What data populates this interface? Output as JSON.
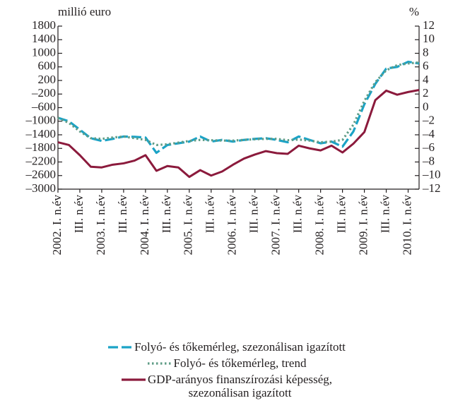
{
  "chart_data": {
    "type": "line",
    "ylabel": "millió euro",
    "y2label": "%",
    "categories": [
      "2002. I. n.év",
      null,
      "III. n.év",
      null,
      "2003. I. n.év",
      null,
      "III. n.év",
      null,
      "2004. I. n.év",
      null,
      "III. n.év",
      null,
      "2005. I. n.év",
      null,
      "III. n.év",
      null,
      "2006. I. n.év",
      null,
      "III. n.év",
      null,
      "2007. I. n.év",
      null,
      "III. n.év",
      null,
      "2008. I. n.év",
      null,
      "III. n.év",
      null,
      "2009. I. n.év",
      null,
      "III. n.év",
      null,
      "2010. I. n.év",
      null
    ],
    "ylim": [
      -3000,
      1800
    ],
    "yticks": [
      {
        "value": -3000,
        "label": "–3000"
      },
      {
        "value": -2600,
        "label": "–2600"
      },
      {
        "value": -2200,
        "label": "–2200"
      },
      {
        "value": -1800,
        "label": "–1800"
      },
      {
        "value": -1400,
        "label": "–1400"
      },
      {
        "value": -1000,
        "label": "–1000"
      },
      {
        "value": -600,
        "label": "–600"
      },
      {
        "value": -200,
        "label": "–200"
      },
      200,
      600,
      1000,
      1400,
      1800
    ],
    "y2lim": [
      -12,
      12
    ],
    "y2ticks": [
      {
        "value": -12,
        "label": "–12"
      },
      {
        "value": -10,
        "label": "–10"
      },
      {
        "value": -8,
        "label": "–8"
      },
      {
        "value": -6,
        "label": "–6"
      },
      {
        "value": -4,
        "label": "–4"
      },
      {
        "value": -2,
        "label": "–2"
      },
      0,
      2,
      4,
      6,
      8,
      10,
      12
    ],
    "series": [
      {
        "name": "Folyó- és tőkemérleg, szezonálisan igazított",
        "color": "#1ba3c6",
        "style": "dashed",
        "values": [
          -900,
          -1000,
          -1250,
          -1500,
          -1580,
          -1520,
          -1450,
          -1460,
          -1480,
          -1930,
          -1700,
          -1650,
          -1600,
          -1450,
          -1600,
          -1550,
          -1600,
          -1550,
          -1520,
          -1500,
          -1550,
          -1620,
          -1450,
          -1550,
          -1650,
          -1600,
          -1750,
          -1300,
          -500,
          100,
          550,
          600,
          750,
          700
        ]
      },
      {
        "name": "Folyó- és tőkemérleg, trend",
        "color": "#5f9c86",
        "style": "dotted",
        "values": [
          -900,
          -1050,
          -1300,
          -1500,
          -1520,
          -1480,
          -1450,
          -1500,
          -1550,
          -1700,
          -1680,
          -1630,
          -1580,
          -1550,
          -1560,
          -1570,
          -1570,
          -1550,
          -1530,
          -1520,
          -1520,
          -1560,
          -1540,
          -1570,
          -1620,
          -1600,
          -1550,
          -1100,
          -400,
          150,
          500,
          650,
          700,
          730
        ]
      },
      {
        "name": "GDP-arányos finanszírozási képesség,\nszezonálisan igazított",
        "color": "#8b1a3c",
        "style": "solid",
        "axis": "y2",
        "values": [
          -5.1,
          -5.5,
          -7.0,
          -8.7,
          -8.8,
          -8.4,
          -8.2,
          -7.8,
          -7.0,
          -9.3,
          -8.6,
          -8.8,
          -10.2,
          -9.2,
          -10.0,
          -9.4,
          -8.4,
          -7.5,
          -6.9,
          -6.4,
          -6.7,
          -6.8,
          -5.6,
          -6.0,
          -6.3,
          -5.6,
          -6.6,
          -5.3,
          -3.6,
          1.1,
          2.5,
          1.9,
          2.3,
          2.6
        ]
      }
    ]
  }
}
